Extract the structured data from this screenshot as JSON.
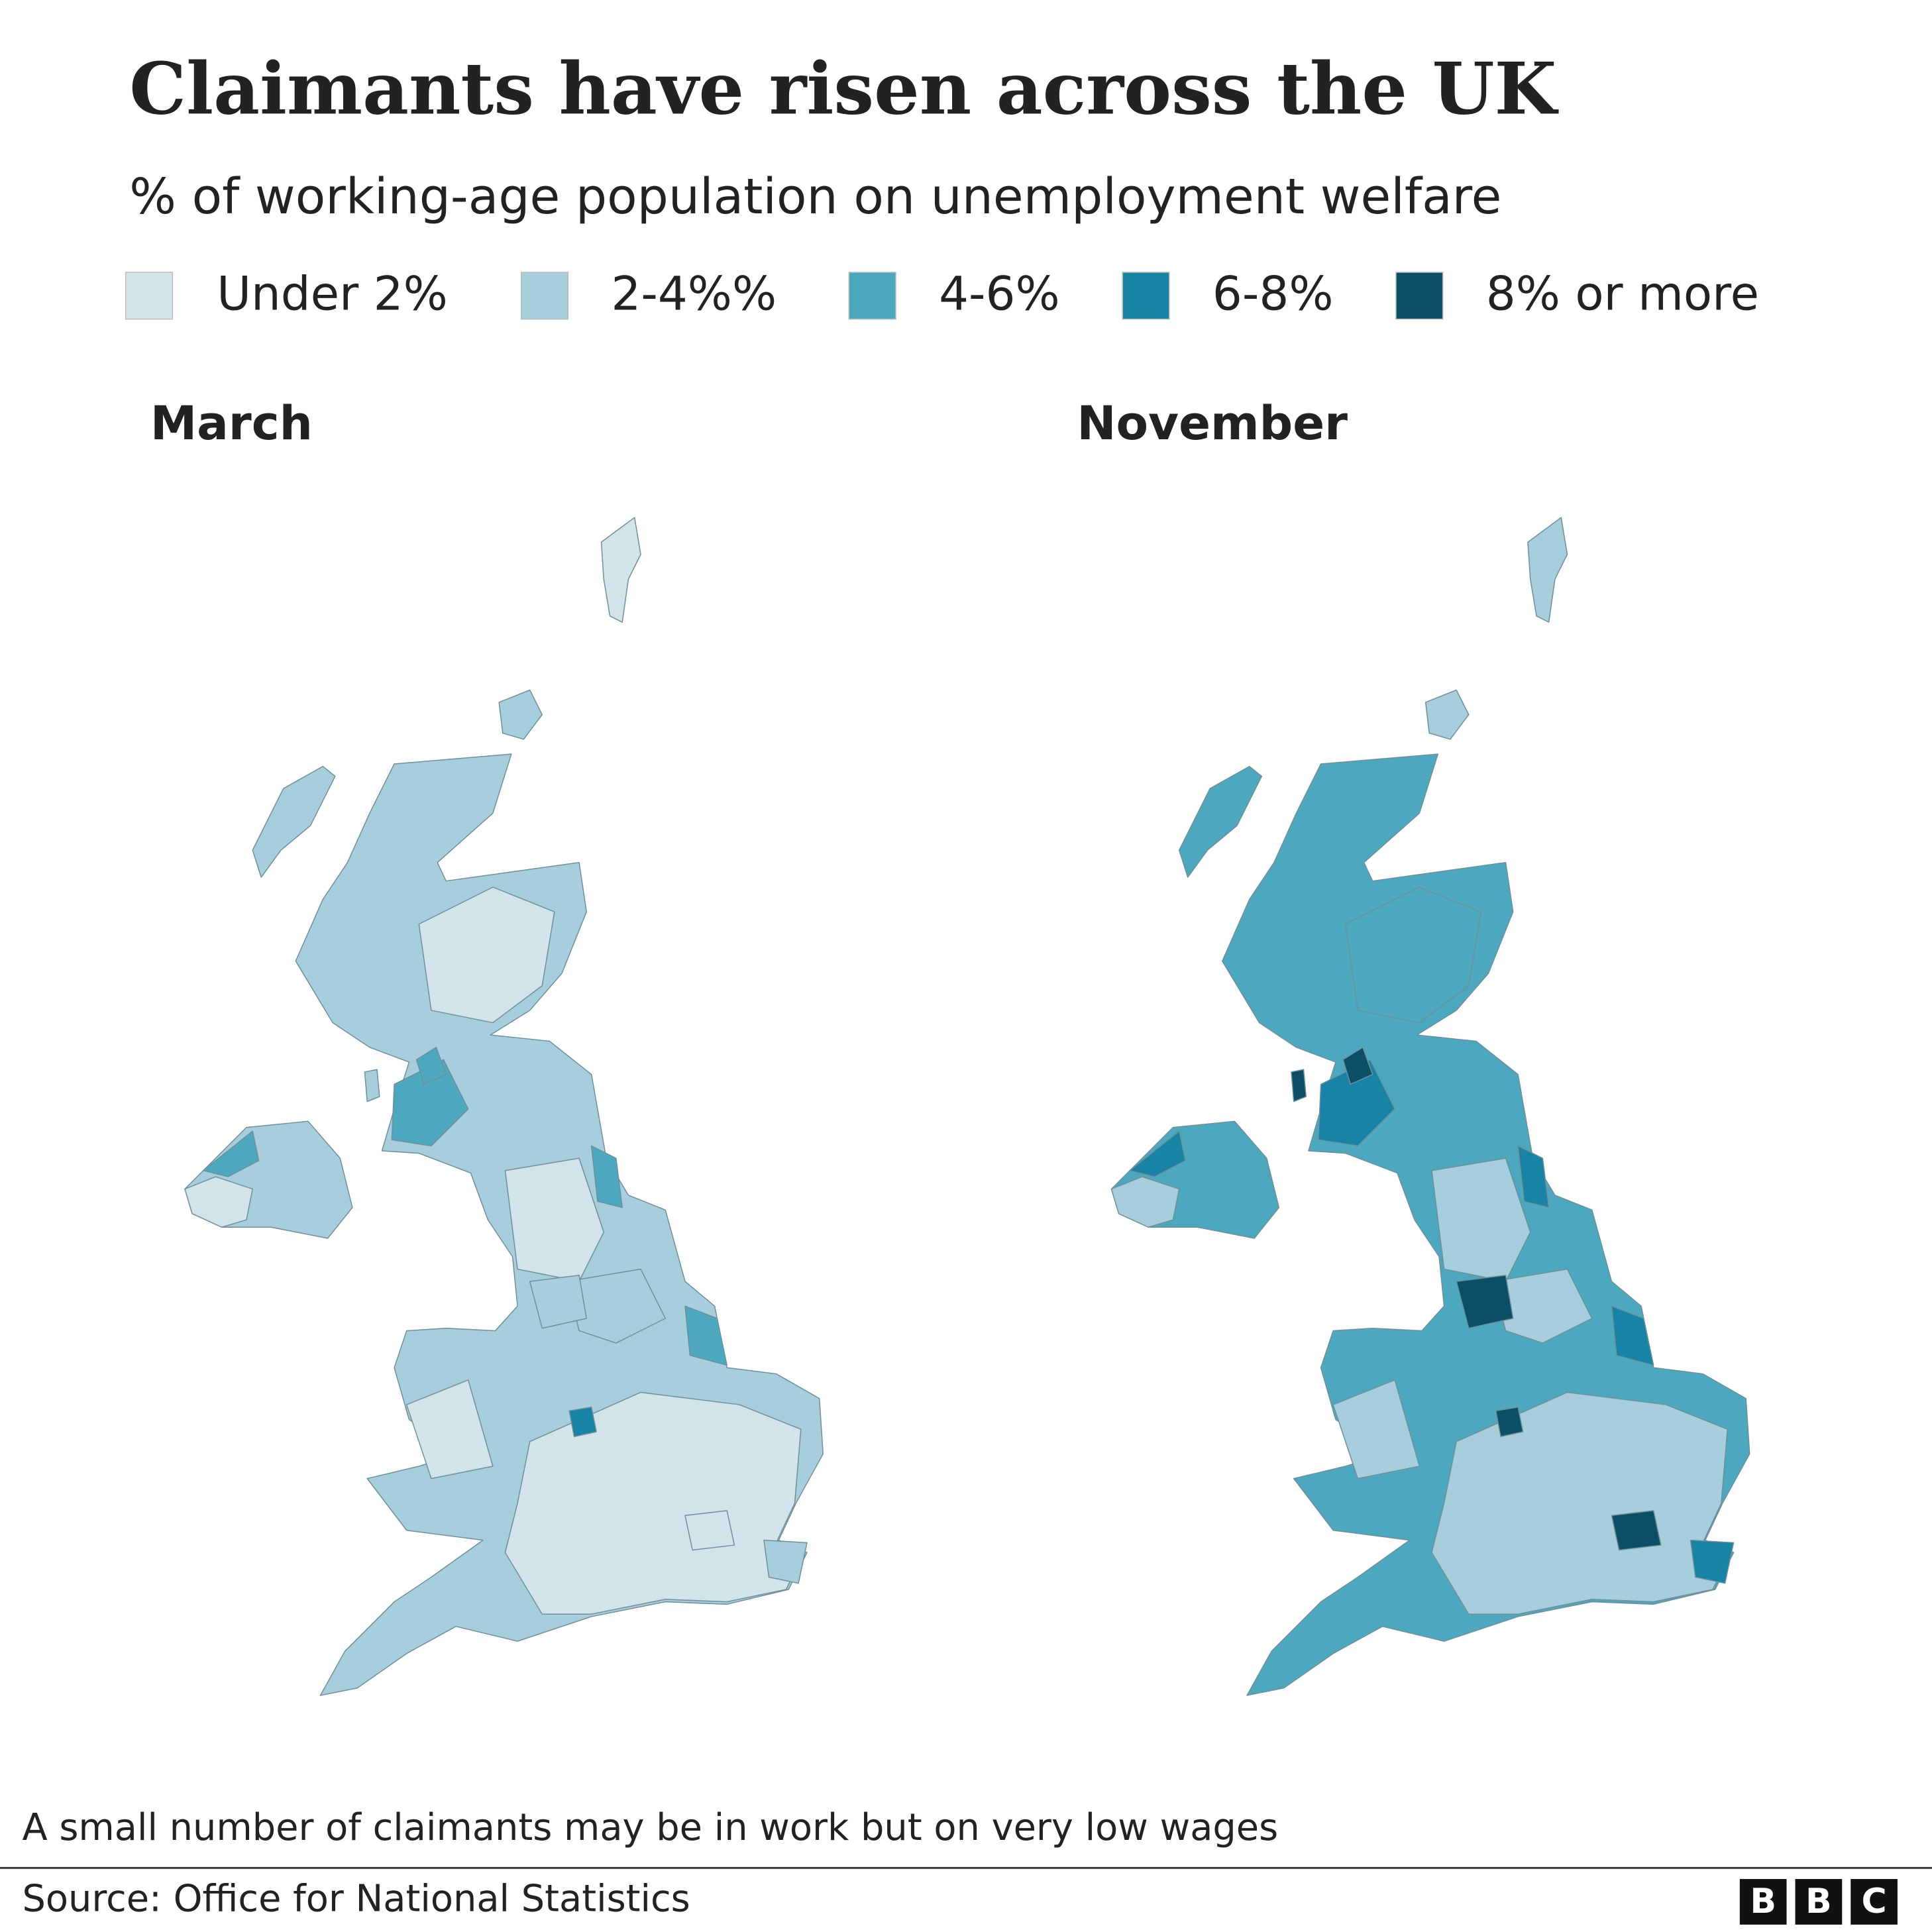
{
  "title": "Claimants have risen across the UK",
  "subtitle": "% of working-age population on unemployment welfare",
  "legend": [
    {
      "label": "Under 2%",
      "color": "#d2e4e9"
    },
    {
      "label": "2-4%%",
      "color": "#a6cedc"
    },
    {
      "label": "4-6%",
      "color": "#4ba8bf"
    },
    {
      "label": "6-8%",
      "color": "#1783a5"
    },
    {
      "label": "8% or more",
      "color": "#0b4f66"
    }
  ],
  "panels": [
    {
      "title": "March"
    },
    {
      "title": "November"
    }
  ],
  "note": "A small number of claimants may be in work but on very low wages",
  "source": "Source: Office for National Statistics",
  "logo": [
    "B",
    "B",
    "C"
  ]
}
